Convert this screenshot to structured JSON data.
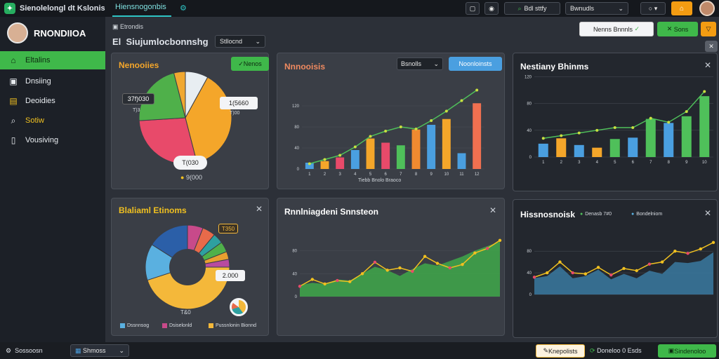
{
  "app": {
    "title": "Sienolelongl dt Kslonis"
  },
  "topbar": {
    "tab_active": "Hiensnogonbis",
    "tab_icon": "gear-icon",
    "btn_search": "Bdl sttfy",
    "dropdown": "Bwnudls",
    "toggle_icon": "circle-icon"
  },
  "sidebar": {
    "user_name": "RNONDIIOA",
    "items": [
      {
        "label": "Eltalins",
        "icon": "home-icon"
      },
      {
        "label": "Dnsiing",
        "icon": "inbox-icon"
      },
      {
        "label": "Deoidies",
        "icon": "chart-icon"
      },
      {
        "label": "Sotiw",
        "icon": "search-icon"
      },
      {
        "label": "Vousiving",
        "icon": "document-icon"
      }
    ]
  },
  "header": {
    "breadcrumb": "Etrondis",
    "title": "Siujumlocbonnshg",
    "select": "Stllocnd",
    "btn_primary": "Nenns Bnnnls",
    "btn_green": "Sons"
  },
  "pie_panel": {
    "title": "Nenooiies",
    "chip": "Nenos",
    "label_a": "37f)030",
    "label_a2": "T)3",
    "label_b": "1(5660",
    "label_b2": "T)00",
    "label_c": "T(030",
    "foot": "9(000"
  },
  "bar_panel": {
    "title": "Nnnooisis",
    "select": "Bsnolls",
    "btn": "Noonloinsts",
    "xlabel": "Tiebb Bnolo Braoco"
  },
  "right_top": {
    "title": "Nestiany Bhinms"
  },
  "donut_panel": {
    "title": "Blaliaml Etinoms",
    "label_a": "T350",
    "label_b": "2.000",
    "label_c": "T&0",
    "legend": [
      "Dssnnsog",
      "Dsiselonld",
      "Pussnlonin Bionnd"
    ]
  },
  "area_panel": {
    "title": "Rnnlniagdeni Snnsteon"
  },
  "right_bottom": {
    "title": "Hissnosnoisk",
    "legend": [
      "Denasb 7#0",
      "Bondelniom"
    ]
  },
  "footer": {
    "status": "Sossoosn",
    "select": "Shmoss",
    "btn_a": "Knepolists",
    "btn_b": "Doneloo 0 Esds",
    "btn_c": "Sindenoloo"
  },
  "chart_data": [
    {
      "type": "pie",
      "title": "Nenooiies",
      "values": [
        8,
        38,
        28,
        22,
        4
      ],
      "colors": [
        "#e8eef2",
        "#f4a62a",
        "#e84a6a",
        "#4fb04a",
        "#f0a830"
      ]
    },
    {
      "type": "bar",
      "title": "Nnnooisis",
      "categories": [
        "1",
        "2",
        "3",
        "4",
        "5",
        "6",
        "7",
        "8",
        "9",
        "10",
        "11",
        "12"
      ],
      "series": [
        {
          "values": [
            12,
            15,
            22,
            36,
            58,
            50,
            45,
            75,
            84,
            95,
            30,
            125
          ]
        }
      ],
      "colors": [
        "#4a9fe0",
        "#f4a62a",
        "#e84a6a",
        "#4a9fe0",
        "#f4a62a",
        "#e84a6a",
        "#4fc05a",
        "#f08a30",
        "#4a9fe0",
        "#f4a62a",
        "#4a9fe0",
        "#f07050"
      ],
      "line": [
        10,
        18,
        26,
        42,
        62,
        72,
        80,
        76,
        92,
        110,
        130,
        150
      ],
      "ylim": [
        0,
        160
      ]
    },
    {
      "type": "bar",
      "title": "Nestiany Bhinms",
      "values": [
        20,
        28,
        18,
        14,
        27,
        29,
        57,
        51,
        61,
        91
      ],
      "colors": [
        "#4a9fe0",
        "#f4a62a",
        "#4a9fe0",
        "#f4a62a",
        "#4fc05a",
        "#4a9fe0",
        "#4fc05a",
        "#4a9fe0",
        "#4fc05a",
        "#4fc05a"
      ],
      "line": [
        28,
        32,
        36,
        40,
        44,
        44,
        58,
        52,
        68,
        98
      ],
      "ylim": [
        0,
        110
      ]
    },
    {
      "type": "pie",
      "title": "Blaliaml Etinoms",
      "values": [
        6,
        5,
        4,
        4,
        3,
        3,
        45,
        14,
        16
      ],
      "colors": [
        "#c84a8a",
        "#e86a4a",
        "#2ea0a0",
        "#4fb04a",
        "#e8a030",
        "#b84aa0",
        "#f4b83a",
        "#5ab0e0",
        "#2b5fa8"
      ]
    },
    {
      "type": "area",
      "title": "Rnnlniagdeni Snnsteon",
      "y1": [
        20,
        24,
        22,
        30,
        28,
        40,
        52,
        46,
        36,
        48,
        58,
        54,
        62,
        70,
        80,
        88,
        96
      ],
      "y2": [
        18,
        30,
        22,
        28,
        26,
        40,
        60,
        46,
        50,
        44,
        70,
        58,
        50,
        56,
        76,
        84,
        98
      ],
      "ylim": [
        0,
        110
      ]
    },
    {
      "type": "area",
      "title": "Hissnosnoisk",
      "y1": [
        30,
        34,
        52,
        30,
        34,
        46,
        28,
        38,
        30,
        44,
        38,
        60,
        58,
        62,
        78
      ],
      "y2": [
        32,
        40,
        60,
        40,
        38,
        50,
        36,
        48,
        44,
        56,
        60,
        80,
        76,
        84,
        96
      ],
      "ylim": [
        0,
        110
      ]
    }
  ]
}
